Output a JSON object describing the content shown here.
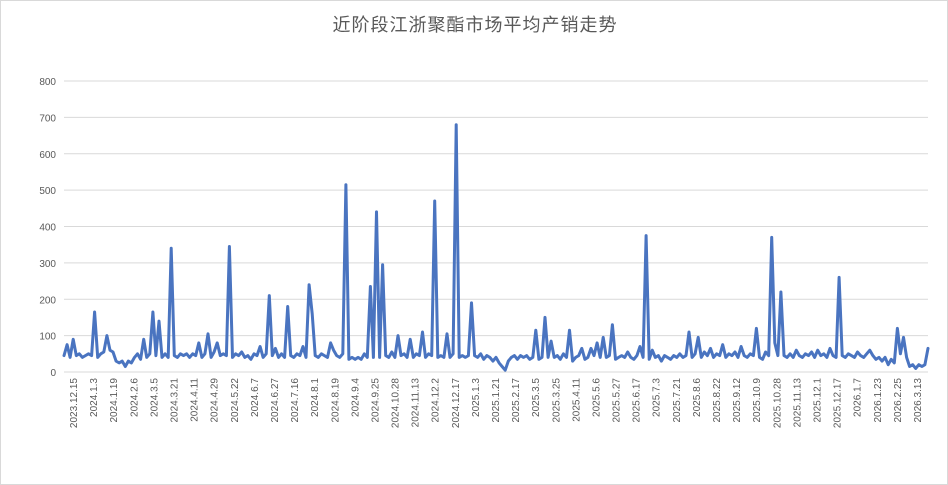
{
  "chart_data": {
    "type": "line",
    "title": "近阶段江浙聚酯市场平均产销走势",
    "xlabel": "",
    "ylabel": "",
    "ylim": [
      0,
      800
    ],
    "yticks": [
      "0",
      "100",
      "200",
      "300",
      "400",
      "500",
      "600",
      "700",
      "800"
    ],
    "grid": "horizontal",
    "legend": "none",
    "line_color": "#4a74c0",
    "x_ticks": [
      "2023.12.15",
      "2024.1.3",
      "2024.1.19",
      "2024.2.6",
      "2024.3.5",
      "2024.3.21",
      "2024.4.11",
      "2024.4.29",
      "2024.5.22",
      "2024.6.7",
      "2024.6.27",
      "2024.7.16",
      "2024.8.1",
      "2024.8.19",
      "2024.9.4",
      "2024.9.25",
      "2024.10.28",
      "2024.11.13",
      "2024.12.2",
      "2024.12.17",
      "2025.1.3",
      "2025.1.21",
      "2025.2.17",
      "2025.3.5",
      "2025.3.25",
      "2025.4.11",
      "2025.5.6",
      "2025.5.27",
      "2025.6.17",
      "2025.7.3",
      "2025.7.21",
      "2025.8.6",
      "2025.8.22",
      "2025.9.12",
      "2025.10.9",
      "2025.10.28",
      "2025.11.13",
      "2025.12.1",
      "2025.12.17",
      "2026.1.7",
      "2026.1.23",
      "2026.2.25",
      "2026.3.13"
    ],
    "series": [
      {
        "values": [
          45,
          75,
          40,
          90,
          45,
          50,
          40,
          45,
          50,
          45,
          165,
          40,
          50,
          55,
          100,
          60,
          55,
          30,
          25,
          30,
          15,
          30,
          25,
          40,
          50,
          35,
          90,
          40,
          50,
          165,
          45,
          140,
          40,
          50,
          40,
          340,
          45,
          40,
          50,
          45,
          50,
          40,
          50,
          45,
          80,
          40,
          50,
          105,
          40,
          55,
          80,
          45,
          50,
          45,
          345,
          40,
          50,
          45,
          55,
          40,
          45,
          35,
          50,
          45,
          70,
          40,
          50,
          210,
          45,
          65,
          40,
          50,
          40,
          180,
          45,
          40,
          50,
          45,
          70,
          40,
          240,
          160,
          45,
          40,
          50,
          45,
          40,
          80,
          60,
          45,
          40,
          50,
          515,
          35,
          40,
          35,
          40,
          35,
          50,
          40,
          235,
          40,
          440,
          40,
          295,
          45,
          40,
          55,
          40,
          100,
          45,
          50,
          40,
          90,
          40,
          50,
          45,
          110,
          40,
          50,
          45,
          470,
          40,
          45,
          40,
          105,
          40,
          50,
          680,
          40,
          45,
          40,
          45,
          190,
          45,
          40,
          50,
          35,
          45,
          40,
          30,
          40,
          25,
          15,
          5,
          30,
          40,
          45,
          35,
          45,
          40,
          45,
          35,
          40,
          115,
          35,
          40,
          150,
          40,
          85,
          40,
          45,
          35,
          50,
          40,
          115,
          30,
          40,
          45,
          65,
          35,
          40,
          65,
          45,
          80,
          40,
          95,
          40,
          45,
          130,
          35,
          40,
          45,
          40,
          55,
          40,
          35,
          45,
          70,
          40,
          375,
          35,
          60,
          40,
          45,
          30,
          45,
          40,
          35,
          45,
          40,
          50,
          40,
          45,
          110,
          40,
          50,
          95,
          40,
          55,
          45,
          65,
          40,
          50,
          45,
          75,
          40,
          50,
          45,
          55,
          40,
          70,
          45,
          40,
          50,
          45,
          120,
          40,
          35,
          55,
          45,
          370,
          80,
          45,
          220,
          45,
          40,
          50,
          40,
          60,
          45,
          40,
          50,
          45,
          55,
          40,
          60,
          45,
          50,
          40,
          65,
          45,
          40,
          260,
          45,
          40,
          50,
          45,
          40,
          55,
          45,
          40,
          50,
          60,
          45,
          35,
          40,
          30,
          40,
          20,
          35,
          25,
          120,
          50,
          95,
          40,
          15,
          20,
          10,
          20,
          15,
          20,
          65
        ]
      }
    ]
  }
}
